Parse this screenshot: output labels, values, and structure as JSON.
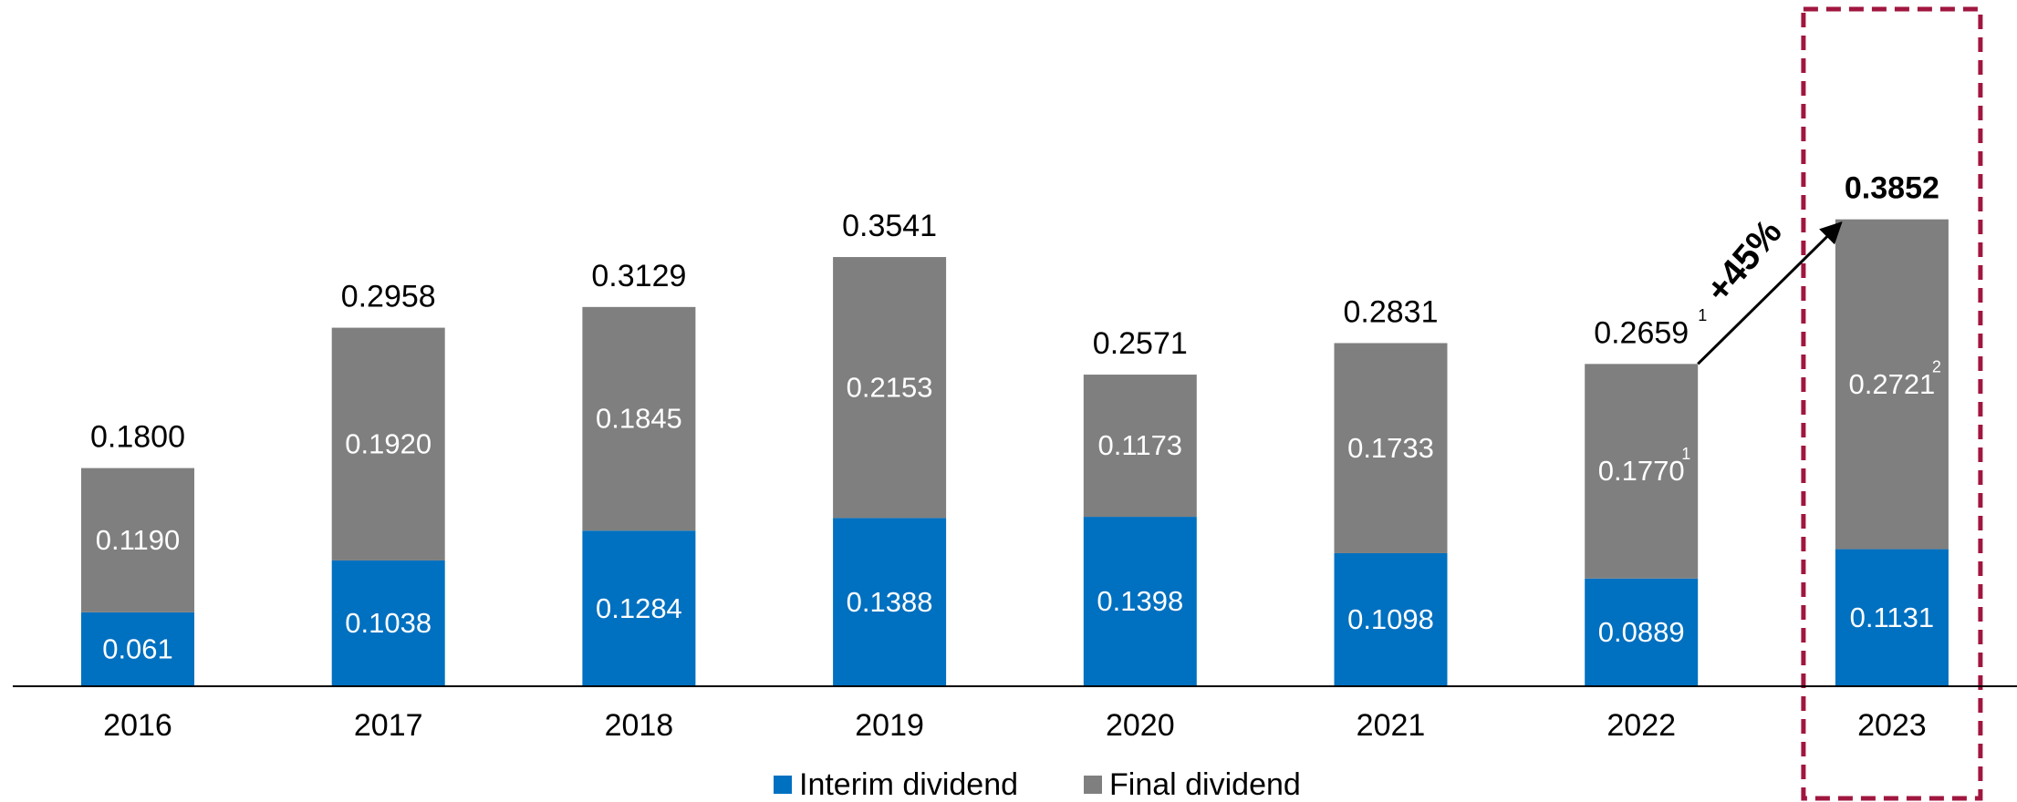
{
  "chart_data": {
    "type": "stacked-bar",
    "categories": [
      "2016",
      "2017",
      "2018",
      "2019",
      "2020",
      "2021",
      "2022",
      "2023"
    ],
    "series": [
      {
        "name": "Interim dividend",
        "color": "#0070c0",
        "values": [
          0.061,
          0.1038,
          0.1284,
          0.1388,
          0.1398,
          0.1098,
          0.0889,
          0.1131
        ],
        "value_labels": [
          "0.061",
          "0.1038",
          "0.1284",
          "0.1388",
          "0.1398",
          "0.1098",
          "0.0889",
          "0.1131"
        ]
      },
      {
        "name": "Final dividend",
        "color": "#7f7f7f",
        "values": [
          0.119,
          0.192,
          0.1845,
          0.2153,
          0.1173,
          0.1733,
          0.177,
          0.2721
        ],
        "value_labels": [
          "0.1190",
          "0.1920",
          "0.1845",
          "0.2153",
          "0.1173",
          "0.1733",
          "0.1770",
          "0.2721"
        ]
      }
    ],
    "totals": [
      0.18,
      0.2958,
      0.3129,
      0.3541,
      0.2571,
      0.2831,
      0.2659,
      0.3852
    ],
    "total_labels": [
      "0.1800",
      "0.2958",
      "0.3129",
      "0.3541",
      "0.2571",
      "0.2831",
      "0.2659",
      "0.3852"
    ],
    "ylim": [
      0,
      0.5
    ],
    "highlight": "2023",
    "highlight_color": "#a0163f",
    "growth_label": "+45%",
    "notes": {
      "2022": "1",
      "2023": "2"
    },
    "legend": "bottom"
  }
}
